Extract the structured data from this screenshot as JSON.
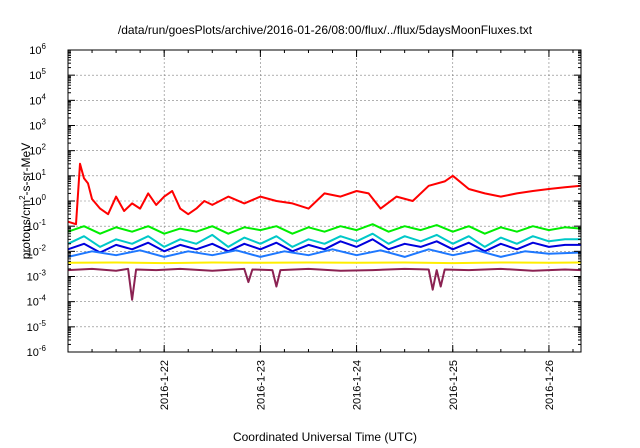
{
  "chart_data": {
    "type": "line",
    "title": "/data/run/goesPlots/archive/2016-01-26/08:00/flux/../flux/5daysMoonFluxes.txt",
    "xlabel": "Coordinated Universal Time (UTC)",
    "ylabel": "protons/cm2-s-sr-MeV",
    "ylabel_parts": {
      "before": "protons/cm",
      "sup": "2",
      "after": "-s-sr-MeV"
    },
    "yscale": "log",
    "ylim_exponents": [
      -6,
      6
    ],
    "y_tick_base": "10",
    "y_tick_exponents": [
      "-6",
      "-5",
      "-4",
      "-3",
      "-2",
      "-1",
      "0",
      "1",
      "2",
      "3",
      "4",
      "5",
      "6"
    ],
    "xlim": [
      "2016-01-21T00:00",
      "2016-01-26T08:00"
    ],
    "x_ticks": [
      {
        "label": "2016-1-22",
        "date": "2016-01-22T00:00"
      },
      {
        "label": "2016-1-23",
        "date": "2016-01-23T00:00"
      },
      {
        "label": "2016-1-24",
        "date": "2016-01-24T00:00"
      },
      {
        "label": "2016-1-25",
        "date": "2016-01-25T00:00"
      },
      {
        "label": "2016-1-26",
        "date": "2016-01-26T00:00"
      }
    ],
    "grid": true,
    "legend": "none",
    "series": [
      {
        "color": "#ff0000",
        "x": [
          "2016-01-21T00:00",
          "2016-01-21T02:00",
          "2016-01-21T03:00",
          "2016-01-21T04:00",
          "2016-01-21T05:00",
          "2016-01-21T06:00",
          "2016-01-21T08:00",
          "2016-01-21T10:00",
          "2016-01-21T12:00",
          "2016-01-21T14:00",
          "2016-01-21T16:00",
          "2016-01-21T18:00",
          "2016-01-21T20:00",
          "2016-01-21T22:00",
          "2016-01-22T00:00",
          "2016-01-22T02:00",
          "2016-01-22T04:00",
          "2016-01-22T06:00",
          "2016-01-22T08:00",
          "2016-01-22T10:00",
          "2016-01-22T12:00",
          "2016-01-22T16:00",
          "2016-01-22T20:00",
          "2016-01-23T00:00",
          "2016-01-23T04:00",
          "2016-01-23T08:00",
          "2016-01-23T12:00",
          "2016-01-23T16:00",
          "2016-01-23T20:00",
          "2016-01-24T00:00",
          "2016-01-24T03:00",
          "2016-01-24T06:00",
          "2016-01-24T10:00",
          "2016-01-24T14:00",
          "2016-01-24T18:00",
          "2016-01-24T22:00",
          "2016-01-25T00:00",
          "2016-01-25T04:00",
          "2016-01-25T08:00",
          "2016-01-25T12:00",
          "2016-01-25T16:00",
          "2016-01-25T20:00",
          "2016-01-26T00:00",
          "2016-01-26T04:00",
          "2016-01-26T08:00"
        ],
        "y": [
          0.15,
          0.12,
          30,
          8,
          5,
          1.2,
          0.5,
          0.3,
          1.5,
          0.4,
          0.8,
          0.5,
          2,
          0.7,
          1.5,
          2.5,
          0.5,
          0.3,
          0.5,
          1,
          0.7,
          1.5,
          0.8,
          1.5,
          1,
          0.8,
          0.5,
          2,
          1.5,
          2.5,
          2,
          0.5,
          1.5,
          1,
          4,
          6,
          10,
          3,
          2,
          1.5,
          2,
          2.5,
          3,
          3.5,
          4
        ]
      },
      {
        "color": "#00ee00",
        "x": [
          "2016-01-21T00:00",
          "2016-01-21T04:00",
          "2016-01-21T08:00",
          "2016-01-21T12:00",
          "2016-01-21T16:00",
          "2016-01-21T20:00",
          "2016-01-22T00:00",
          "2016-01-22T04:00",
          "2016-01-22T08:00",
          "2016-01-22T12:00",
          "2016-01-22T16:00",
          "2016-01-22T20:00",
          "2016-01-23T00:00",
          "2016-01-23T04:00",
          "2016-01-23T08:00",
          "2016-01-23T12:00",
          "2016-01-23T16:00",
          "2016-01-23T20:00",
          "2016-01-24T00:00",
          "2016-01-24T04:00",
          "2016-01-24T08:00",
          "2016-01-24T12:00",
          "2016-01-24T16:00",
          "2016-01-24T20:00",
          "2016-01-25T00:00",
          "2016-01-25T04:00",
          "2016-01-25T08:00",
          "2016-01-25T12:00",
          "2016-01-25T16:00",
          "2016-01-25T20:00",
          "2016-01-26T00:00",
          "2016-01-26T04:00",
          "2016-01-26T08:00"
        ],
        "y": [
          0.06,
          0.1,
          0.05,
          0.09,
          0.06,
          0.1,
          0.05,
          0.08,
          0.06,
          0.1,
          0.05,
          0.09,
          0.07,
          0.1,
          0.05,
          0.09,
          0.06,
          0.1,
          0.07,
          0.12,
          0.06,
          0.1,
          0.07,
          0.11,
          0.06,
          0.1,
          0.05,
          0.09,
          0.06,
          0.1,
          0.07,
          0.09,
          0.08
        ]
      },
      {
        "color": "#00c8c8",
        "x": [
          "2016-01-21T00:00",
          "2016-01-21T04:00",
          "2016-01-21T08:00",
          "2016-01-21T12:00",
          "2016-01-21T16:00",
          "2016-01-21T20:00",
          "2016-01-22T00:00",
          "2016-01-22T04:00",
          "2016-01-22T08:00",
          "2016-01-22T12:00",
          "2016-01-22T16:00",
          "2016-01-22T20:00",
          "2016-01-23T00:00",
          "2016-01-23T04:00",
          "2016-01-23T08:00",
          "2016-01-23T12:00",
          "2016-01-23T16:00",
          "2016-01-23T20:00",
          "2016-01-24T00:00",
          "2016-01-24T04:00",
          "2016-01-24T08:00",
          "2016-01-24T12:00",
          "2016-01-24T16:00",
          "2016-01-24T20:00",
          "2016-01-25T00:00",
          "2016-01-25T04:00",
          "2016-01-25T08:00",
          "2016-01-25T12:00",
          "2016-01-25T16:00",
          "2016-01-25T20:00",
          "2016-01-26T00:00",
          "2016-01-26T04:00",
          "2016-01-26T08:00"
        ],
        "y": [
          0.02,
          0.04,
          0.015,
          0.03,
          0.02,
          0.04,
          0.015,
          0.03,
          0.02,
          0.045,
          0.015,
          0.035,
          0.02,
          0.04,
          0.015,
          0.03,
          0.02,
          0.04,
          0.025,
          0.05,
          0.02,
          0.04,
          0.025,
          0.045,
          0.02,
          0.04,
          0.015,
          0.035,
          0.02,
          0.04,
          0.025,
          0.03,
          0.03
        ]
      },
      {
        "color": "#0000dd",
        "x": [
          "2016-01-21T00:00",
          "2016-01-21T04:00",
          "2016-01-21T08:00",
          "2016-01-21T12:00",
          "2016-01-21T16:00",
          "2016-01-21T20:00",
          "2016-01-22T00:00",
          "2016-01-22T04:00",
          "2016-01-22T08:00",
          "2016-01-22T12:00",
          "2016-01-22T16:00",
          "2016-01-22T20:00",
          "2016-01-23T00:00",
          "2016-01-23T04:00",
          "2016-01-23T08:00",
          "2016-01-23T12:00",
          "2016-01-23T16:00",
          "2016-01-23T20:00",
          "2016-01-24T00:00",
          "2016-01-24T04:00",
          "2016-01-24T08:00",
          "2016-01-24T12:00",
          "2016-01-24T16:00",
          "2016-01-24T20:00",
          "2016-01-25T00:00",
          "2016-01-25T04:00",
          "2016-01-25T08:00",
          "2016-01-25T12:00",
          "2016-01-25T16:00",
          "2016-01-25T20:00",
          "2016-01-26T00:00",
          "2016-01-26T04:00",
          "2016-01-26T08:00"
        ],
        "y": [
          0.012,
          0.02,
          0.009,
          0.018,
          0.012,
          0.022,
          0.01,
          0.018,
          0.012,
          0.02,
          0.01,
          0.02,
          0.012,
          0.022,
          0.01,
          0.018,
          0.012,
          0.025,
          0.015,
          0.03,
          0.012,
          0.02,
          0.015,
          0.025,
          0.012,
          0.022,
          0.01,
          0.02,
          0.012,
          0.022,
          0.015,
          0.018,
          0.018
        ]
      },
      {
        "color": "#1e78ff",
        "x": [
          "2016-01-21T00:00",
          "2016-01-21T06:00",
          "2016-01-21T12:00",
          "2016-01-21T18:00",
          "2016-01-22T00:00",
          "2016-01-22T06:00",
          "2016-01-22T12:00",
          "2016-01-22T18:00",
          "2016-01-23T00:00",
          "2016-01-23T06:00",
          "2016-01-23T12:00",
          "2016-01-23T18:00",
          "2016-01-24T00:00",
          "2016-01-24T06:00",
          "2016-01-24T12:00",
          "2016-01-24T18:00",
          "2016-01-25T00:00",
          "2016-01-25T06:00",
          "2016-01-25T12:00",
          "2016-01-25T18:00",
          "2016-01-26T00:00",
          "2016-01-26T08:00"
        ],
        "y": [
          0.006,
          0.01,
          0.007,
          0.011,
          0.006,
          0.01,
          0.007,
          0.011,
          0.006,
          0.01,
          0.007,
          0.012,
          0.007,
          0.011,
          0.006,
          0.012,
          0.007,
          0.011,
          0.006,
          0.01,
          0.008,
          0.009
        ]
      },
      {
        "color": "#ffee00",
        "x": [
          "2016-01-21T00:00",
          "2016-01-21T12:00",
          "2016-01-22T00:00",
          "2016-01-22T12:00",
          "2016-01-23T00:00",
          "2016-01-23T12:00",
          "2016-01-24T00:00",
          "2016-01-24T12:00",
          "2016-01-25T00:00",
          "2016-01-25T12:00",
          "2016-01-26T00:00",
          "2016-01-26T08:00"
        ],
        "y": [
          0.0035,
          0.0036,
          0.0034,
          0.0036,
          0.0035,
          0.0036,
          0.0035,
          0.0036,
          0.0034,
          0.0036,
          0.0035,
          0.0036
        ]
      },
      {
        "color": "#8b2252",
        "x": [
          "2016-01-21T00:00",
          "2016-01-21T06:00",
          "2016-01-21T12:00",
          "2016-01-21T15:00",
          "2016-01-21T16:00",
          "2016-01-21T17:00",
          "2016-01-21T22:00",
          "2016-01-22T04:00",
          "2016-01-22T12:00",
          "2016-01-22T20:00",
          "2016-01-22T21:00",
          "2016-01-22T22:00",
          "2016-01-23T03:00",
          "2016-01-23T04:00",
          "2016-01-23T05:00",
          "2016-01-23T12:00",
          "2016-01-23T20:00",
          "2016-01-24T04:00",
          "2016-01-24T12:00",
          "2016-01-24T18:00",
          "2016-01-24T19:00",
          "2016-01-24T20:00",
          "2016-01-24T21:00",
          "2016-01-24T22:00",
          "2016-01-25T04:00",
          "2016-01-25T12:00",
          "2016-01-25T20:00",
          "2016-01-26T04:00",
          "2016-01-26T08:00"
        ],
        "y": [
          0.0018,
          0.002,
          0.0017,
          0.002,
          0.00012,
          0.0019,
          0.0018,
          0.002,
          0.0017,
          0.002,
          0.0006,
          0.0019,
          0.0018,
          0.0004,
          0.0018,
          0.002,
          0.0017,
          0.0018,
          0.002,
          0.0019,
          0.0003,
          0.0018,
          0.0004,
          0.0019,
          0.0018,
          0.002,
          0.0017,
          0.0019,
          0.0018
        ]
      }
    ]
  }
}
